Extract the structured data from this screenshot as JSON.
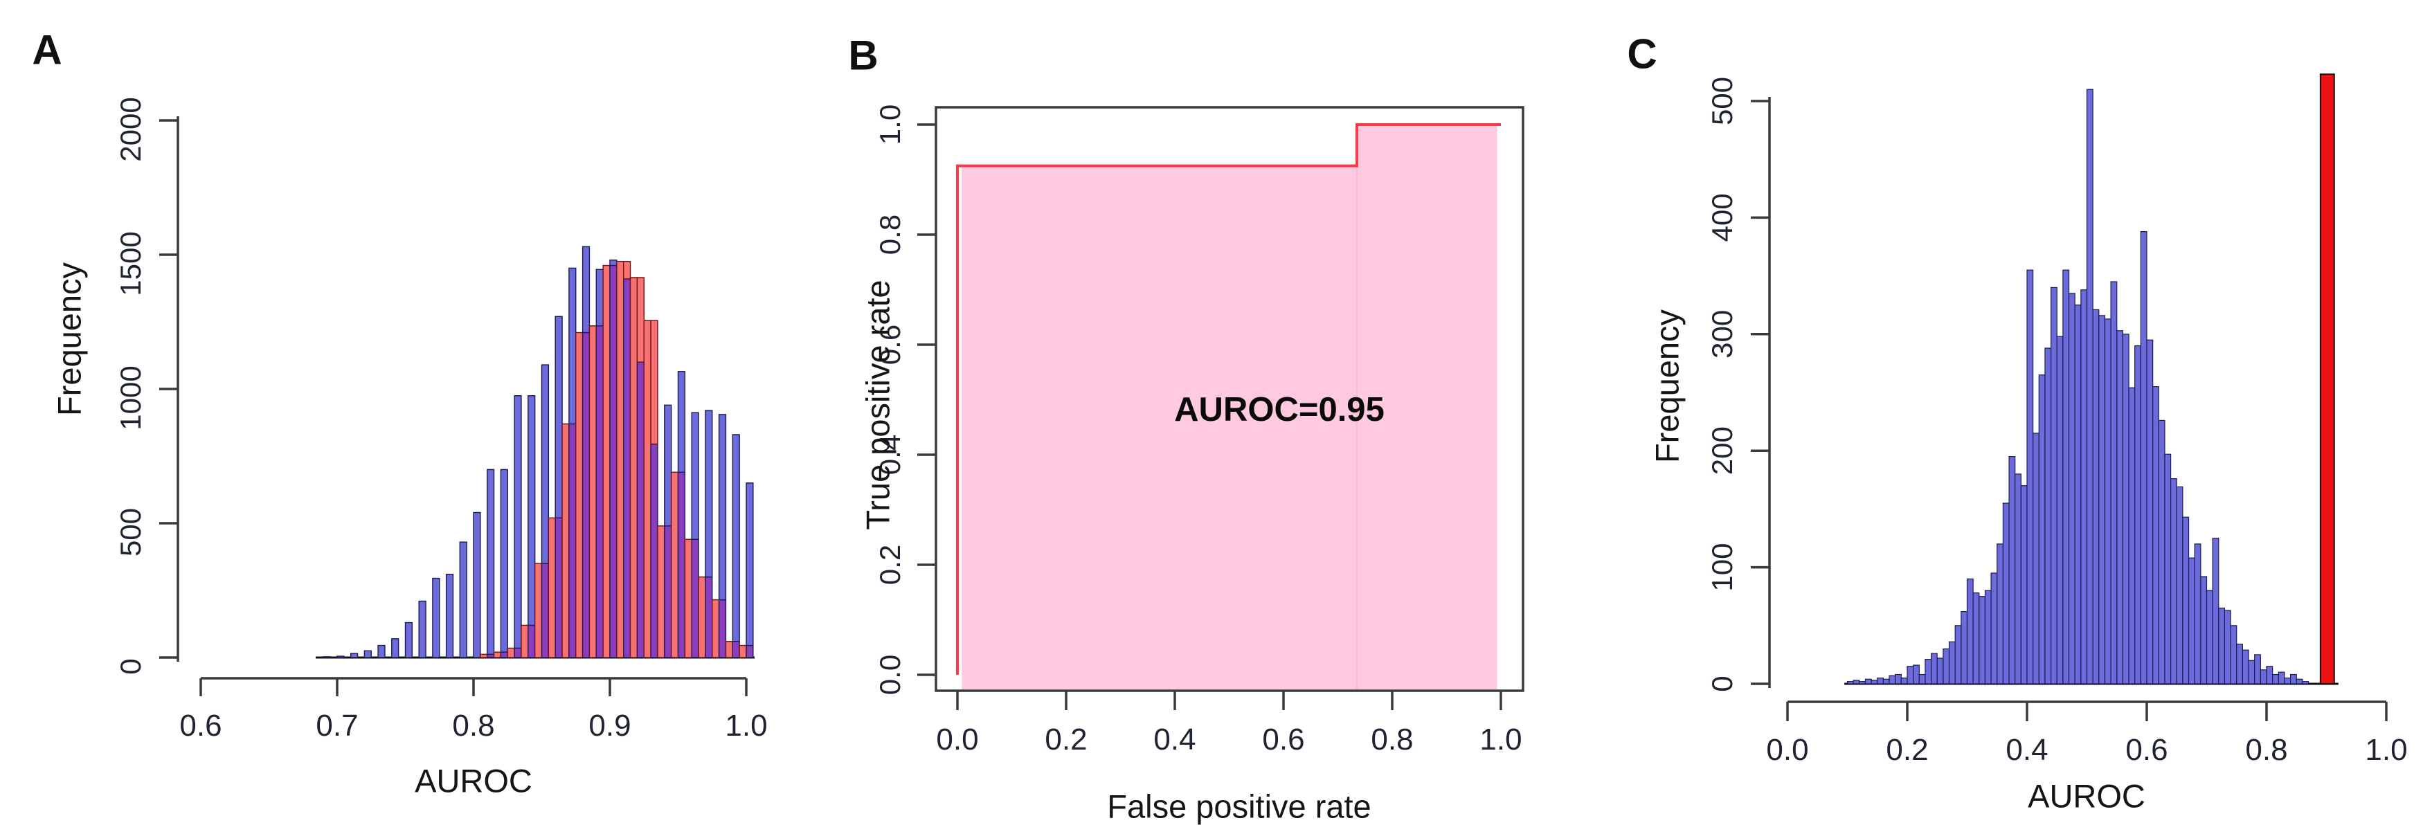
{
  "labels": {
    "panel_a": "A",
    "panel_b": "B",
    "panel_c": "C",
    "a_xlabel": "AUROC",
    "a_ylabel": "Frequency",
    "b_xlabel": "False positive rate",
    "b_ylabel": "True positive rate",
    "c_xlabel": "AUROC",
    "c_ylabel": "Frequency",
    "b_annotation": "AUROC=0.95"
  },
  "colors": {
    "blue_bar": "#6B6BDB",
    "blue_edge": "#1b1b4f",
    "red_bar": "#F87272",
    "red_edge": "#6b1212",
    "overlap_bar": "#8A3EBE",
    "highlight_red": "#EE1111",
    "roc_line": "#FB3A49",
    "roc_fill": "#FFC9E0",
    "roc_fill_seam": "#F9BBD6",
    "axis": "#3a3a3a",
    "tick_text": "#1d2330",
    "baseline": "#111111"
  },
  "chart_data": [
    {
      "id": "panelA",
      "type": "bar",
      "subtype": "overlaid-histograms",
      "title": "A",
      "xlabel": "AUROC",
      "ylabel": "Frequency",
      "xlim": [
        0.6,
        1.0
      ],
      "ylim": [
        0,
        2000
      ],
      "xtick_values": [
        0.6,
        0.7,
        0.8,
        0.9,
        1.0
      ],
      "xtick_labels": [
        "0.6",
        "0.7",
        "0.8",
        "0.9",
        "1.0"
      ],
      "ytick_values": [
        0,
        500,
        1000,
        1500,
        2000
      ],
      "ytick_labels": [
        "0",
        "500",
        "1000",
        "1500",
        "2000"
      ],
      "bin_width": 0.01,
      "grid": false,
      "series": [
        {
          "name": "blue-distribution",
          "bin_start": 0.69,
          "values": [
            3,
            5,
            15,
            25,
            45,
            70,
            130,
            210,
            295,
            310,
            430,
            540,
            700,
            700,
            975,
            975,
            1090,
            1270,
            1450,
            1530,
            1445,
            1480,
            1410,
            1100,
            795,
            940,
            1065,
            912,
            920,
            905,
            830,
            650
          ]
        },
        {
          "name": "red-distribution",
          "bin_start": 0.805,
          "values": [
            12,
            20,
            35,
            120,
            350,
            520,
            870,
            1210,
            1235,
            1460,
            1475,
            1415,
            1255,
            490,
            690,
            440,
            300,
            215,
            60,
            45
          ]
        }
      ]
    },
    {
      "id": "panelB",
      "type": "line",
      "subtype": "roc-curve",
      "title": "B",
      "xlabel": "False positive rate",
      "ylabel": "True positive rate",
      "xlim": [
        0.0,
        1.0
      ],
      "ylim": [
        0.0,
        1.0
      ],
      "xtick_values": [
        0.0,
        0.2,
        0.4,
        0.6,
        0.8,
        1.0
      ],
      "xtick_labels": [
        "0.0",
        "0.2",
        "0.4",
        "0.6",
        "0.8",
        "1.0"
      ],
      "ytick_values": [
        0.0,
        0.2,
        0.4,
        0.6,
        0.8,
        1.0
      ],
      "ytick_labels": [
        "0.0",
        "0.2",
        "0.4",
        "0.6",
        "0.8",
        "1.0"
      ],
      "annotation": "AUROC=0.95",
      "curve_points_x": [
        0.0,
        0.0,
        0.735,
        0.735,
        1.0
      ],
      "curve_points_y": [
        0.0,
        0.925,
        0.925,
        1.0,
        1.0
      ],
      "filled_area": true,
      "grid": false,
      "boxed": true
    },
    {
      "id": "panelC",
      "type": "bar",
      "subtype": "histogram",
      "title": "C",
      "xlabel": "AUROC",
      "ylabel": "Frequency",
      "xlim": [
        0.0,
        1.0
      ],
      "ylim": [
        0,
        500
      ],
      "xtick_values": [
        0.0,
        0.2,
        0.4,
        0.6,
        0.8,
        1.0
      ],
      "xtick_labels": [
        "0.0",
        "0.2",
        "0.4",
        "0.6",
        "0.8",
        "1.0"
      ],
      "ytick_values": [
        0,
        100,
        200,
        300,
        400,
        500
      ],
      "ytick_labels": [
        "0",
        "100",
        "200",
        "300",
        "400",
        "500"
      ],
      "bin_width": 0.01,
      "bin_start": 0.1,
      "grid": false,
      "values": [
        2,
        3,
        2,
        4,
        3,
        5,
        4,
        7,
        8,
        5,
        15,
        16,
        8,
        21,
        26,
        22,
        30,
        36,
        50,
        62,
        90,
        78,
        75,
        80,
        95,
        120,
        155,
        195,
        180,
        170,
        355,
        215,
        265,
        288,
        340,
        298,
        355,
        335,
        325,
        338,
        510,
        321,
        316,
        313,
        345,
        303,
        300,
        254,
        290,
        388,
        295,
        255,
        226,
        197,
        176,
        169,
        143,
        108,
        120,
        92,
        80,
        125,
        65,
        63,
        50,
        34,
        29,
        20,
        25,
        12,
        15,
        8,
        10,
        5,
        8,
        4,
        2
      ],
      "highlight_bar": {
        "x_left": 0.89,
        "width": 0.023,
        "value": 523,
        "label": "observed-AUROC-marker"
      }
    }
  ]
}
